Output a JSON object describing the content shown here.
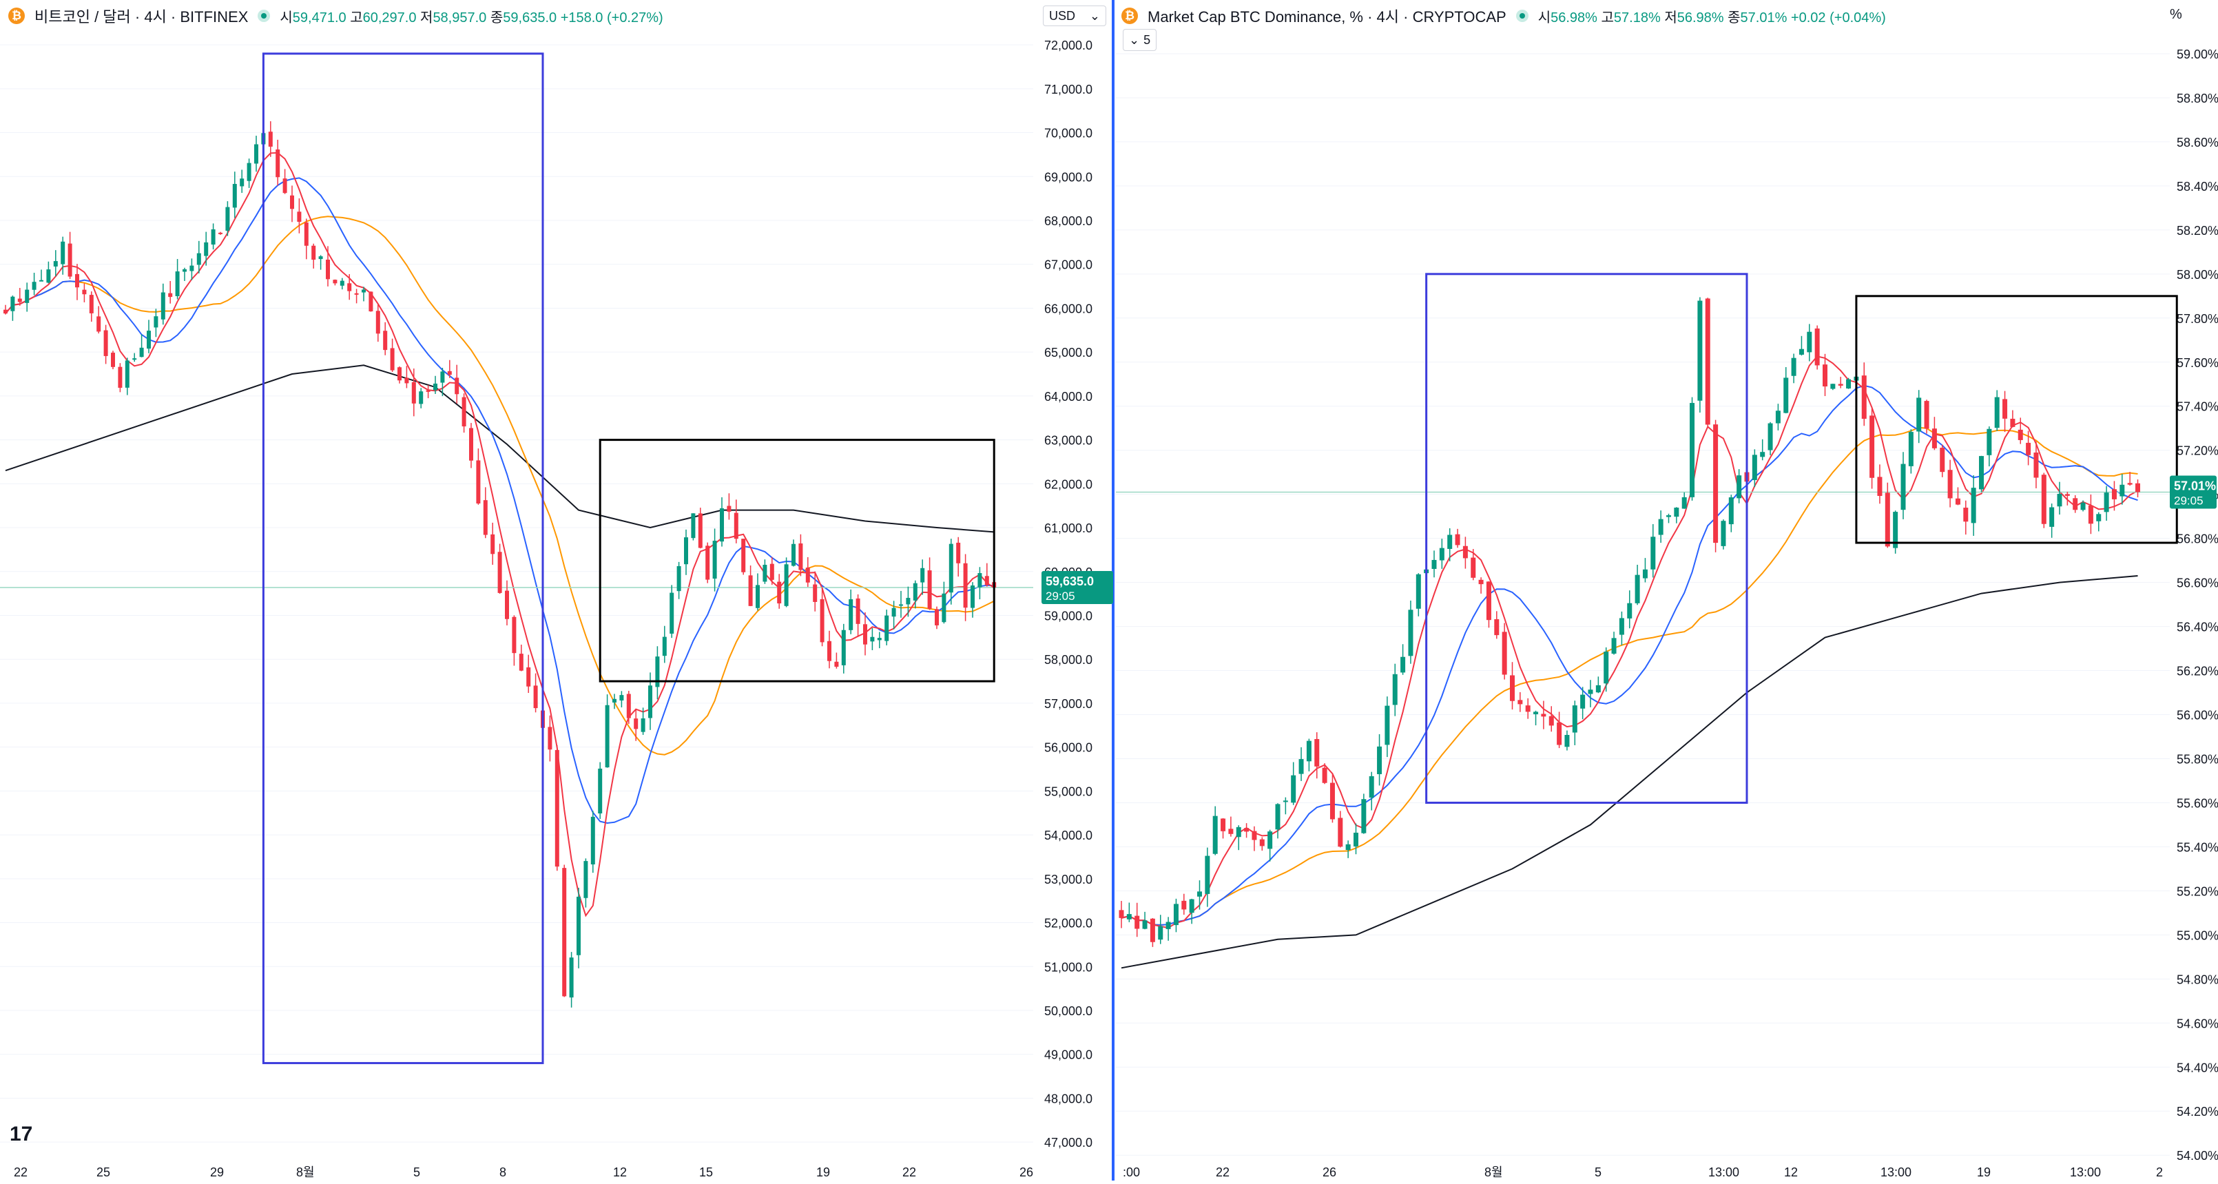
{
  "left_header": {
    "coin_icon": "bitcoin-icon",
    "symbol": "비트코인 / 달러 · 4시 · BITFINEX",
    "o_label": "시",
    "o": "59,471.0",
    "h_label": "고",
    "h": "60,297.0",
    "l_label": "저",
    "l": "58,957.0",
    "c_label": "종",
    "c": "59,635.0",
    "change": "+158.0 (+0.27%)"
  },
  "currency_selector": {
    "value": "USD",
    "icon": "chevron-down-icon"
  },
  "right_header": {
    "coin_icon": "bitcoin-icon",
    "symbol": "Market Cap BTC Dominance, % · 4시 · CRYPTOCAP",
    "o_label": "시",
    "o": "56.98%",
    "h_label": "고",
    "h": "57.18%",
    "l_label": "저",
    "l": "56.98%",
    "c_label": "종",
    "c": "57.01%",
    "change": "+0.02 (+0.04%)",
    "unit": "%"
  },
  "indicator_toggle": {
    "label": "5",
    "icon": "chevron-down-icon"
  },
  "colors": {
    "up": "#089981",
    "down": "#f23645",
    "ma_red": "#f23645",
    "ma_blue": "#2962ff",
    "ma_orange": "#ff9800",
    "ma_black": "#131722",
    "box_blue": "#3c3cdc",
    "box_black": "#000000",
    "last_price_line": "#9ad8c4"
  },
  "chart_data": [
    {
      "type": "candlestick",
      "name": "BTCUSD 4h",
      "yaxis": {
        "range": [
          46500,
          72300
        ],
        "ticks": [
          "47,000.0",
          "48,000.0",
          "49,000.0",
          "50,000.0",
          "51,000.0",
          "52,000.0",
          "53,000.0",
          "54,000.0",
          "55,000.0",
          "56,000.0",
          "57,000.0",
          "58,000.0",
          "59,000.0",
          "60,000.0",
          "61,000.0",
          "62,000.0",
          "63,000.0",
          "64,000.0",
          "65,000.0",
          "66,000.0",
          "67,000.0",
          "68,000.0",
          "69,000.0",
          "70,000.0",
          "71,000.0",
          "72,000.0"
        ]
      },
      "xaxis": {
        "labels": [
          "22",
          "25",
          "29",
          "8월",
          "5",
          "8",
          "12",
          "15",
          "19",
          "22",
          "26"
        ]
      },
      "last_price": {
        "value": 59635.0,
        "label": "59,635.0",
        "countdown": "29:05"
      },
      "anchors": [
        [
          0,
          66000
        ],
        [
          8,
          67300
        ],
        [
          16,
          64400
        ],
        [
          22,
          66200
        ],
        [
          30,
          67900
        ],
        [
          36,
          70100
        ],
        [
          40,
          68100
        ],
        [
          44,
          67000
        ],
        [
          50,
          66200
        ],
        [
          54,
          64500
        ],
        [
          58,
          63900
        ],
        [
          62,
          64700
        ],
        [
          66,
          61500
        ],
        [
          72,
          57600
        ],
        [
          76,
          56000
        ],
        [
          78,
          50200
        ],
        [
          80,
          52500
        ],
        [
          82,
          54600
        ],
        [
          84,
          56800
        ],
        [
          86,
          57200
        ],
        [
          88,
          56300
        ],
        [
          90,
          57200
        ],
        [
          93,
          59500
        ],
        [
          96,
          61200
        ],
        [
          98,
          59800
        ],
        [
          100,
          61500
        ],
        [
          102,
          60800
        ],
        [
          104,
          59300
        ],
        [
          106,
          60200
        ],
        [
          108,
          59500
        ],
        [
          110,
          60800
        ],
        [
          112,
          59700
        ],
        [
          114,
          58500
        ],
        [
          116,
          57700
        ],
        [
          118,
          59400
        ],
        [
          120,
          58300
        ],
        [
          122,
          58700
        ],
        [
          124,
          59300
        ],
        [
          128,
          59900
        ],
        [
          130,
          58600
        ],
        [
          132,
          60600
        ],
        [
          134,
          59400
        ],
        [
          136,
          59800
        ],
        [
          138,
          59700
        ]
      ],
      "seed": 11,
      "mas": [
        {
          "name": "",
          "color": "ma_red",
          "period": 5
        },
        {
          "name": "",
          "color": "ma_blue",
          "period": 11
        },
        {
          "name": "",
          "color": "ma_orange",
          "period": 22
        }
      ],
      "ma_black": [
        [
          0,
          62300
        ],
        [
          20,
          63400
        ],
        [
          40,
          64500
        ],
        [
          50,
          64700
        ],
        [
          60,
          64200
        ],
        [
          70,
          62900
        ],
        [
          80,
          61400
        ],
        [
          90,
          61000
        ],
        [
          100,
          61400
        ],
        [
          110,
          61400
        ],
        [
          120,
          61150
        ],
        [
          130,
          61000
        ],
        [
          138,
          60900
        ]
      ],
      "boxes": [
        {
          "color": "box_blue",
          "from": [
            36,
            71800
          ],
          "to": [
            75,
            48800
          ]
        },
        {
          "color": "box_black",
          "from": [
            83,
            63000
          ],
          "to": [
            138,
            57500
          ]
        }
      ]
    },
    {
      "type": "candlestick",
      "name": "BTC.D 4h",
      "yaxis": {
        "range": [
          53.96,
          59.1
        ],
        "ticks": [
          "54.00%",
          "54.20%",
          "54.40%",
          "54.60%",
          "54.80%",
          "55.00%",
          "55.20%",
          "55.40%",
          "55.60%",
          "55.80%",
          "56.00%",
          "56.20%",
          "56.40%",
          "56.60%",
          "56.80%",
          "57.00%",
          "57.20%",
          "57.40%",
          "57.60%",
          "57.80%",
          "58.00%",
          "58.20%",
          "58.40%",
          "58.60%",
          "58.80%",
          "59.00%"
        ]
      },
      "xaxis": {
        "labels": [
          ":00",
          "22",
          "26",
          "8월",
          "5",
          "13:00",
          "12",
          "13:00",
          "19",
          "13:00",
          "2"
        ]
      },
      "last_price": {
        "value": 57.01,
        "label": "57.01%",
        "countdown": "29:05"
      },
      "anchors": [
        [
          0,
          55.1
        ],
        [
          4,
          55.0
        ],
        [
          10,
          55.2
        ],
        [
          12,
          55.5
        ],
        [
          18,
          55.4
        ],
        [
          22,
          55.7
        ],
        [
          24,
          55.9
        ],
        [
          28,
          55.4
        ],
        [
          30,
          55.5
        ],
        [
          34,
          56.0
        ],
        [
          38,
          56.6
        ],
        [
          42,
          56.8
        ],
        [
          46,
          56.6
        ],
        [
          50,
          56.1
        ],
        [
          56,
          55.9
        ],
        [
          60,
          56.1
        ],
        [
          64,
          56.4
        ],
        [
          68,
          56.8
        ],
        [
          72,
          57.0
        ],
        [
          74,
          57.9
        ],
        [
          76,
          56.8
        ],
        [
          78,
          57.0
        ],
        [
          82,
          57.2
        ],
        [
          86,
          57.6
        ],
        [
          88,
          57.7
        ],
        [
          90,
          57.5
        ],
        [
          94,
          57.5
        ],
        [
          96,
          57.1
        ],
        [
          98,
          56.8
        ],
        [
          102,
          57.4
        ],
        [
          106,
          57.0
        ],
        [
          108,
          56.9
        ],
        [
          112,
          57.4
        ],
        [
          116,
          57.2
        ],
        [
          118,
          56.9
        ],
        [
          120,
          57.0
        ],
        [
          124,
          56.9
        ],
        [
          126,
          57.0
        ],
        [
          130,
          57.01
        ]
      ],
      "seed": 29,
      "mas": [
        {
          "name": "",
          "color": "ma_red",
          "period": 5
        },
        {
          "name": "",
          "color": "ma_blue",
          "period": 14
        },
        {
          "name": "",
          "color": "ma_orange",
          "period": 30
        }
      ],
      "ma_black": [
        [
          0,
          54.85
        ],
        [
          20,
          54.98
        ],
        [
          30,
          55.0
        ],
        [
          40,
          55.15
        ],
        [
          50,
          55.3
        ],
        [
          60,
          55.5
        ],
        [
          70,
          55.8
        ],
        [
          80,
          56.1
        ],
        [
          90,
          56.35
        ],
        [
          100,
          56.45
        ],
        [
          110,
          56.55
        ],
        [
          120,
          56.6
        ],
        [
          130,
          56.63
        ]
      ],
      "boxes": [
        {
          "color": "box_blue",
          "from": [
            39,
            58.0
          ],
          "to": [
            80,
            55.6
          ]
        },
        {
          "color": "box_black",
          "from": [
            94,
            57.9
          ],
          "to": [
            135,
            56.78
          ]
        }
      ]
    }
  ]
}
